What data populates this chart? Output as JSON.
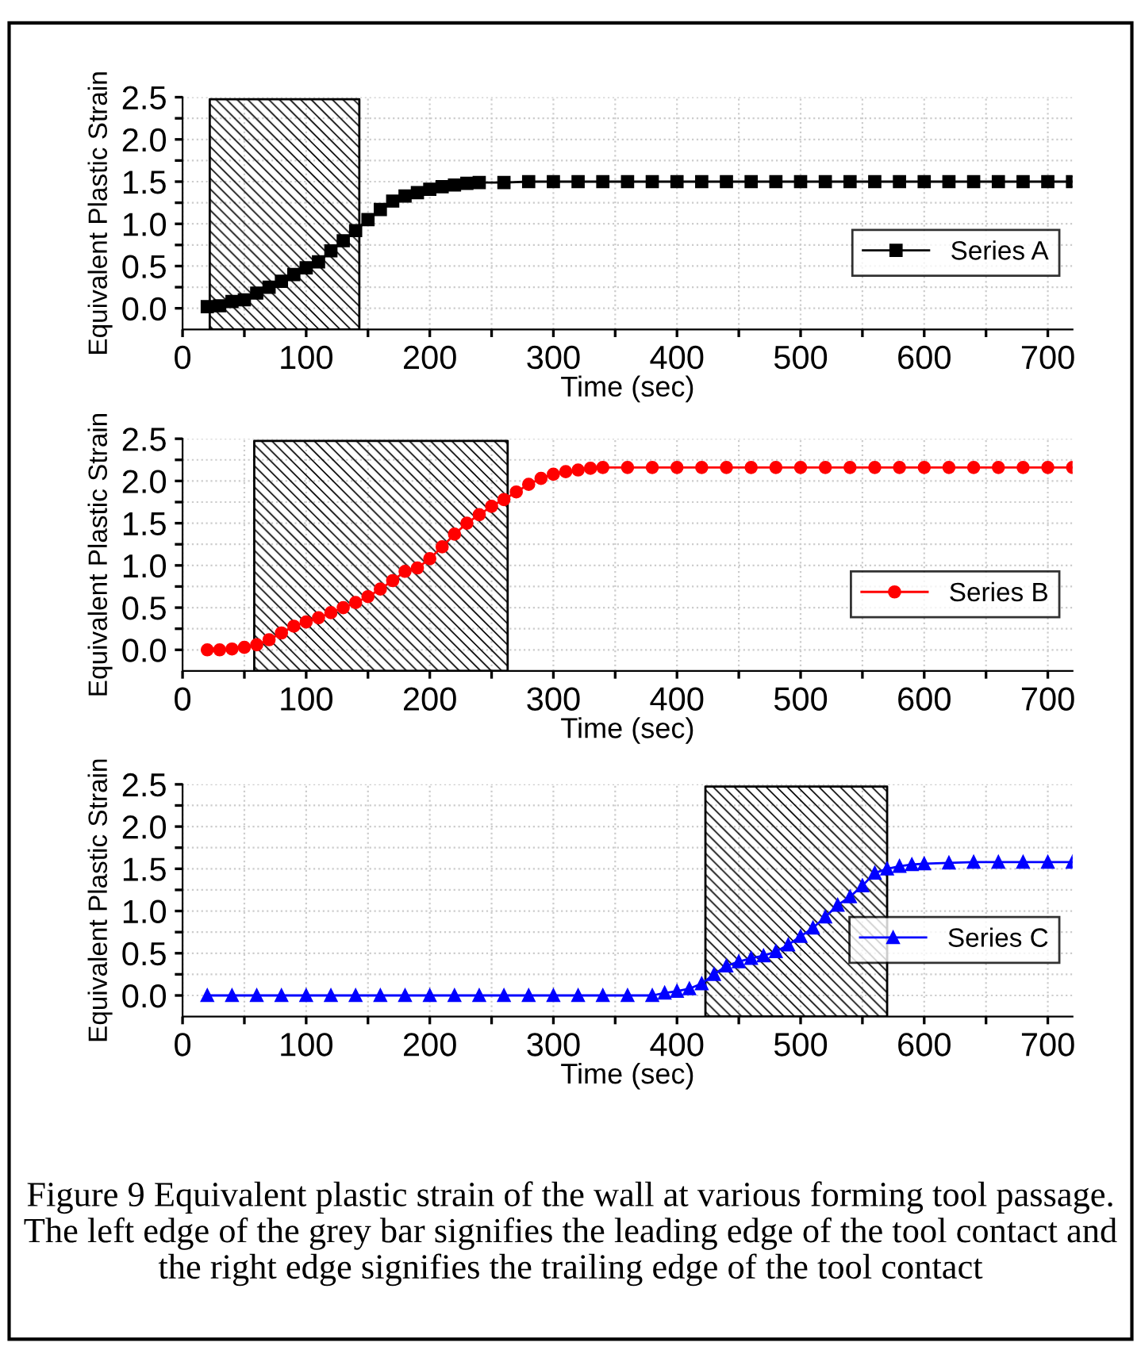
{
  "chart_data": [
    {
      "type": "line",
      "xlabel": "Time (sec)",
      "ylabel": "Equivalent Plastic Strain",
      "xlim": [
        0,
        720
      ],
      "ylim": [
        -0.25,
        2.5
      ],
      "xticks": [
        0,
        {
          "value": 50,
          "label": null
        },
        100,
        {
          "value": 150,
          "label": null
        },
        200,
        {
          "value": 250,
          "label": null
        },
        300,
        {
          "value": 350,
          "label": null
        },
        400,
        {
          "value": 450,
          "label": null
        },
        500,
        {
          "value": 550,
          "label": null
        },
        600,
        {
          "value": 650,
          "label": null
        },
        700
      ],
      "yticks": [
        {
          "value": 0,
          "label": "0.0"
        },
        {
          "value": 0.25,
          "label": null
        },
        0.5,
        {
          "value": 0.75,
          "label": null
        },
        {
          "value": 1,
          "label": "1.0"
        },
        {
          "value": 1.25,
          "label": null
        },
        1.5,
        {
          "value": 1.75,
          "label": null
        },
        {
          "value": 2,
          "label": "2.0"
        },
        {
          "value": 2.25,
          "label": null
        },
        2.5
      ],
      "grid": true,
      "legend": "right",
      "bands": [
        {
          "axis": "x",
          "from": 22,
          "to": 143,
          "color": "#000000"
        }
      ],
      "series": [
        {
          "name": "Series A",
          "color": "#000000",
          "marker": "square",
          "x": [
            20,
            30,
            40,
            50,
            60,
            70,
            80,
            90,
            100,
            110,
            120,
            130,
            140,
            150,
            160,
            170,
            180,
            190,
            200,
            210,
            220,
            230,
            240,
            260,
            280,
            300,
            320,
            340,
            360,
            380,
            400,
            420,
            440,
            460,
            480,
            500,
            520,
            540,
            560,
            580,
            600,
            620,
            640,
            660,
            680,
            700,
            720
          ],
          "values": [
            0.02,
            0.03,
            0.08,
            0.1,
            0.18,
            0.25,
            0.32,
            0.4,
            0.48,
            0.55,
            0.68,
            0.8,
            0.92,
            1.05,
            1.17,
            1.27,
            1.33,
            1.37,
            1.41,
            1.44,
            1.46,
            1.48,
            1.49,
            1.49,
            1.5,
            1.5,
            1.5,
            1.5,
            1.5,
            1.5,
            1.5,
            1.5,
            1.5,
            1.5,
            1.5,
            1.5,
            1.5,
            1.5,
            1.5,
            1.5,
            1.5,
            1.5,
            1.5,
            1.5,
            1.5,
            1.5,
            1.5
          ]
        }
      ]
    },
    {
      "type": "line",
      "xlabel": "Time (sec)",
      "ylabel": "Equivalent Plastic Strain",
      "xlim": [
        0,
        720
      ],
      "ylim": [
        -0.25,
        2.5
      ],
      "xticks": [
        0,
        {
          "value": 50,
          "label": null
        },
        100,
        {
          "value": 150,
          "label": null
        },
        200,
        {
          "value": 250,
          "label": null
        },
        300,
        {
          "value": 350,
          "label": null
        },
        400,
        {
          "value": 450,
          "label": null
        },
        500,
        {
          "value": 550,
          "label": null
        },
        600,
        {
          "value": 650,
          "label": null
        },
        700
      ],
      "yticks": [
        {
          "value": 0,
          "label": "0.0"
        },
        {
          "value": 0.25,
          "label": null
        },
        0.5,
        {
          "value": 0.75,
          "label": null
        },
        {
          "value": 1,
          "label": "1.0"
        },
        {
          "value": 1.25,
          "label": null
        },
        1.5,
        {
          "value": 1.75,
          "label": null
        },
        {
          "value": 2,
          "label": "2.0"
        },
        {
          "value": 2.25,
          "label": null
        },
        2.5
      ],
      "grid": true,
      "legend": "right",
      "bands": [
        {
          "axis": "x",
          "from": 58,
          "to": 263,
          "color": "#000000"
        }
      ],
      "series": [
        {
          "name": "Series B",
          "color": "#ff0000",
          "marker": "circle",
          "x": [
            20,
            30,
            40,
            50,
            60,
            70,
            80,
            90,
            100,
            110,
            120,
            130,
            140,
            150,
            160,
            170,
            180,
            190,
            200,
            210,
            220,
            230,
            240,
            250,
            260,
            270,
            280,
            290,
            300,
            310,
            320,
            330,
            340,
            360,
            380,
            400,
            420,
            440,
            460,
            480,
            500,
            520,
            540,
            560,
            580,
            600,
            620,
            640,
            660,
            680,
            700,
            720
          ],
          "values": [
            0.0,
            0.0,
            0.01,
            0.03,
            0.06,
            0.12,
            0.2,
            0.28,
            0.33,
            0.38,
            0.44,
            0.5,
            0.56,
            0.63,
            0.72,
            0.82,
            0.93,
            0.97,
            1.08,
            1.22,
            1.37,
            1.5,
            1.6,
            1.7,
            1.78,
            1.87,
            1.96,
            2.03,
            2.08,
            2.11,
            2.13,
            2.15,
            2.16,
            2.16,
            2.16,
            2.16,
            2.16,
            2.16,
            2.16,
            2.16,
            2.16,
            2.16,
            2.16,
            2.16,
            2.16,
            2.16,
            2.16,
            2.16,
            2.16,
            2.16,
            2.16,
            2.16
          ]
        }
      ]
    },
    {
      "type": "line",
      "xlabel": "Time (sec)",
      "ylabel": "Equivalent Plastic Strain",
      "xlim": [
        0,
        720
      ],
      "ylim": [
        -0.25,
        2.5
      ],
      "xticks": [
        0,
        {
          "value": 50,
          "label": null
        },
        100,
        {
          "value": 150,
          "label": null
        },
        200,
        {
          "value": 250,
          "label": null
        },
        300,
        {
          "value": 350,
          "label": null
        },
        400,
        {
          "value": 450,
          "label": null
        },
        500,
        {
          "value": 550,
          "label": null
        },
        600,
        {
          "value": 650,
          "label": null
        },
        700
      ],
      "yticks": [
        {
          "value": 0,
          "label": "0.0"
        },
        {
          "value": 0.25,
          "label": null
        },
        0.5,
        {
          "value": 0.75,
          "label": null
        },
        {
          "value": 1,
          "label": "1.0"
        },
        {
          "value": 1.25,
          "label": null
        },
        1.5,
        {
          "value": 1.75,
          "label": null
        },
        {
          "value": 2,
          "label": "2.0"
        },
        {
          "value": 2.25,
          "label": null
        },
        2.5
      ],
      "grid": true,
      "legend": "right",
      "bands": [
        {
          "axis": "x",
          "from": 423,
          "to": 570,
          "color": "#000000"
        }
      ],
      "annotations": [
        "Figure 9 Equivalent plastic strain of the wall at various forming tool passage. The left edge of the grey bar signifies the leading edge of the tool contact and the right edge signifies the trailing edge of the tool contact"
      ],
      "series": [
        {
          "name": "Series C",
          "color": "#0000ff",
          "marker": "triangle",
          "x": [
            20,
            40,
            60,
            80,
            100,
            120,
            140,
            160,
            180,
            200,
            220,
            240,
            260,
            280,
            300,
            320,
            340,
            360,
            380,
            390,
            400,
            410,
            420,
            430,
            440,
            450,
            460,
            470,
            480,
            490,
            500,
            510,
            520,
            530,
            540,
            550,
            560,
            570,
            580,
            590,
            600,
            620,
            640,
            660,
            680,
            700,
            720
          ],
          "values": [
            0.0,
            0.0,
            0.0,
            0.0,
            0.0,
            0.0,
            0.0,
            0.0,
            0.0,
            0.0,
            0.0,
            0.0,
            0.0,
            0.0,
            0.0,
            0.0,
            0.0,
            0.0,
            0.0,
            0.03,
            0.05,
            0.08,
            0.14,
            0.25,
            0.35,
            0.4,
            0.44,
            0.47,
            0.52,
            0.6,
            0.7,
            0.8,
            0.93,
            1.07,
            1.17,
            1.3,
            1.45,
            1.5,
            1.53,
            1.55,
            1.56,
            1.57,
            1.58,
            1.58,
            1.58,
            1.58,
            1.58
          ]
        }
      ]
    }
  ]
}
